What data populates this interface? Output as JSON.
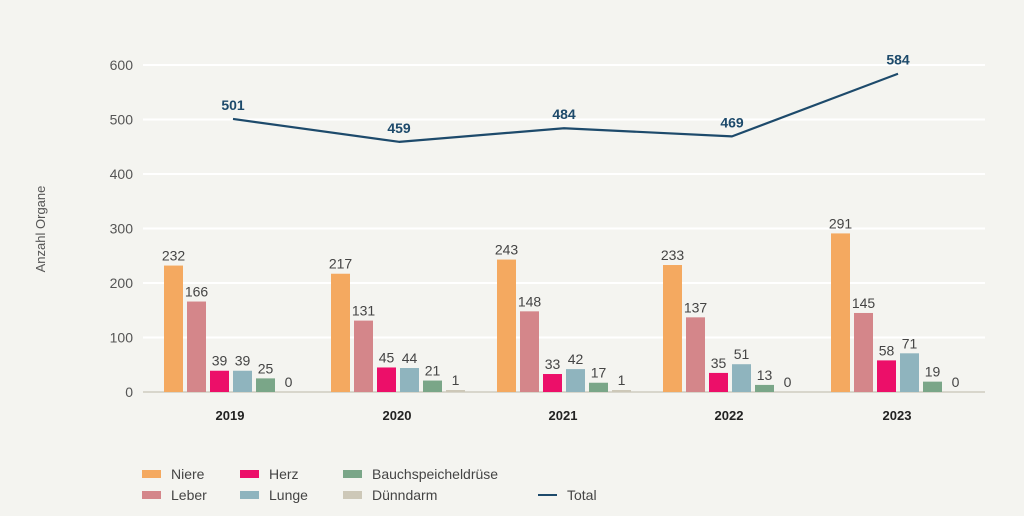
{
  "chart_data": {
    "type": "bar",
    "title": "",
    "xlabel": "",
    "ylabel": "Anzahl Organe",
    "ylim": [
      0,
      600
    ],
    "yticks": [
      0,
      100,
      200,
      300,
      400,
      500,
      600
    ],
    "grid": true,
    "legend_position": "bottom-left",
    "categories": [
      "2019",
      "2020",
      "2021",
      "2022",
      "2023"
    ],
    "series": [
      {
        "name": "Niere",
        "type": "bar",
        "color": "#f4a960",
        "values": [
          232,
          217,
          243,
          233,
          291
        ]
      },
      {
        "name": "Leber",
        "type": "bar",
        "color": "#d4868a",
        "values": [
          166,
          131,
          148,
          137,
          145
        ]
      },
      {
        "name": "Herz",
        "type": "bar",
        "color": "#ec0f69",
        "values": [
          39,
          45,
          33,
          35,
          58
        ]
      },
      {
        "name": "Lunge",
        "type": "bar",
        "color": "#8fb4be",
        "values": [
          39,
          44,
          42,
          51,
          71
        ]
      },
      {
        "name": "Bauchspeicheldrüse",
        "type": "bar",
        "color": "#7aa688",
        "values": [
          25,
          21,
          17,
          13,
          19
        ]
      },
      {
        "name": "Dünndarm",
        "type": "bar",
        "color": "#cdc8b8",
        "values": [
          0,
          1,
          1,
          0,
          0
        ]
      },
      {
        "name": "Total",
        "type": "line",
        "color": "#1d4a6b",
        "values": [
          501,
          459,
          484,
          469,
          584
        ]
      }
    ]
  },
  "legend": {
    "items": [
      "Niere",
      "Herz",
      "Bauchspeicheldrüse",
      "Leber",
      "Lunge",
      "Dünndarm",
      "Total"
    ]
  }
}
